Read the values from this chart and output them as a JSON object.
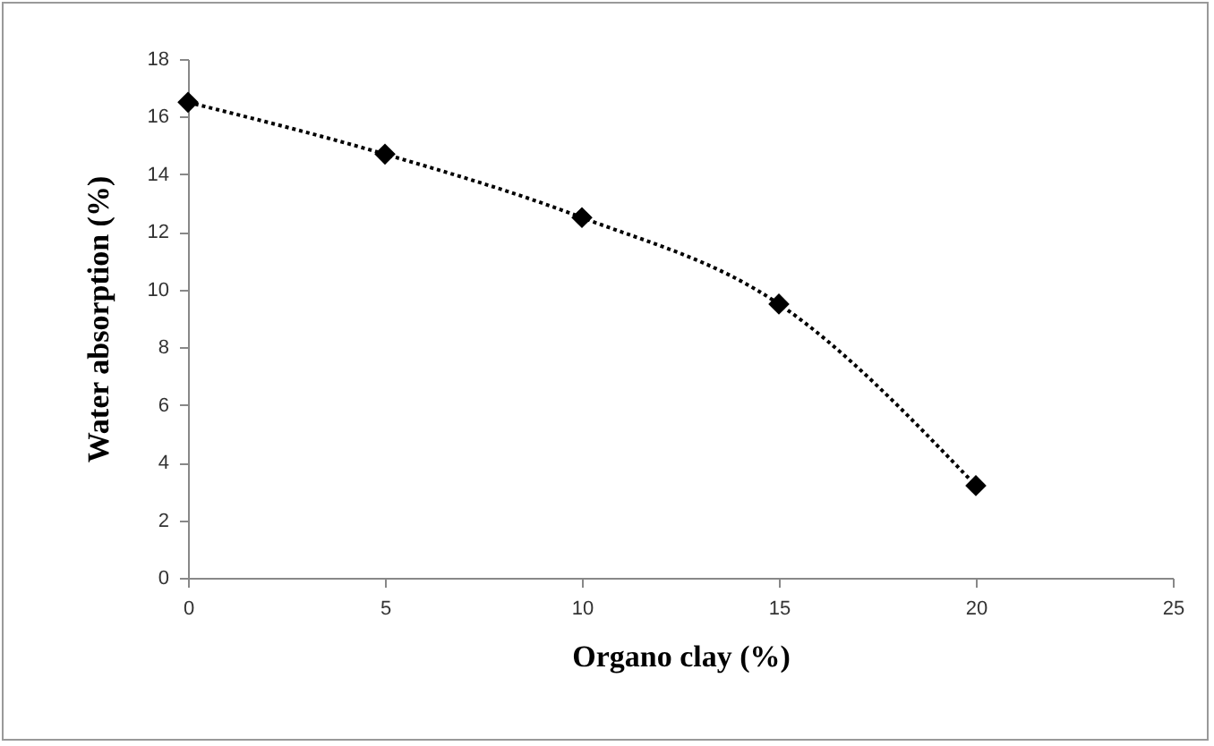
{
  "chart_data": {
    "type": "line",
    "xlabel": "Organo clay (%)",
    "ylabel": "Water absorption (%)",
    "x": [
      0,
      5,
      10,
      15,
      20
    ],
    "series": [
      {
        "color": "#000000",
        "values": [
          16.5,
          14.7,
          12.5,
          9.5,
          3.2
        ]
      }
    ],
    "xlim": [
      0,
      25
    ],
    "xticks": [
      0,
      5,
      10,
      15,
      20,
      25
    ],
    "ylim": [
      0,
      18
    ],
    "yticks": [
      0,
      2,
      4,
      6,
      8,
      10,
      12,
      14,
      16,
      18
    ],
    "grid": false,
    "marker": "diamond",
    "line_style": "dotted"
  }
}
